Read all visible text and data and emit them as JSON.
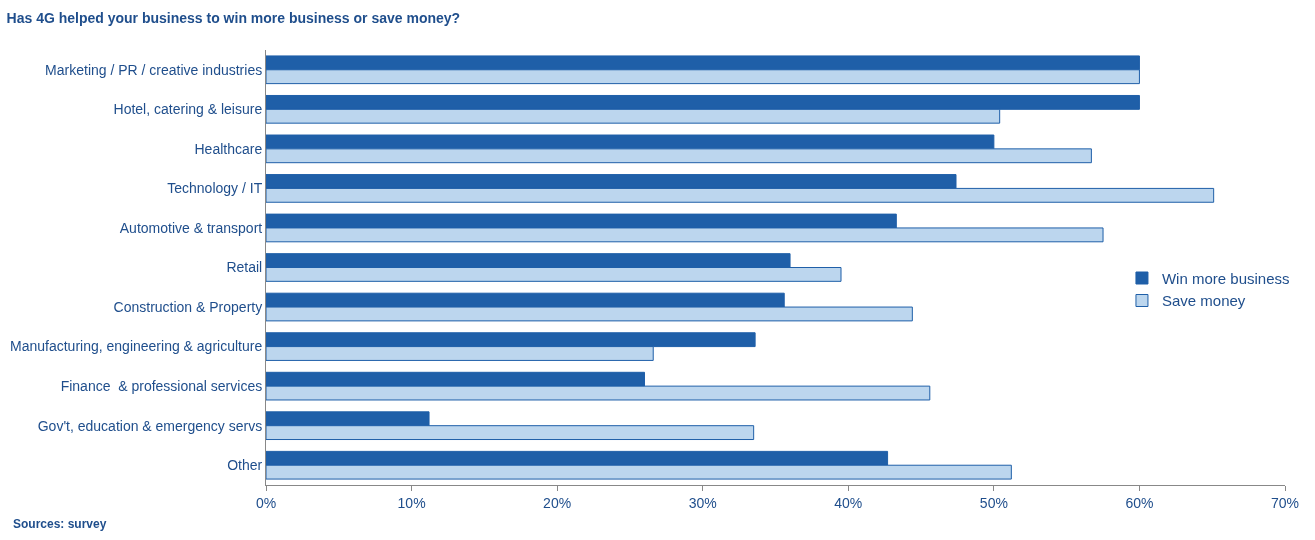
{
  "chart_data": {
    "type": "bar",
    "orientation": "horizontal",
    "title": "Has 4G helped your business to win more business or save money?",
    "categories": [
      "Marketing / PR / creative industries",
      "Hotel, catering & leisure",
      "Healthcare",
      "Technology / IT",
      "Automotive & transport",
      "Retail",
      "Construction & Property",
      "Manufacturing, engineering & agriculture",
      "Finance  & professional services",
      "Gov't, education & emergency servs",
      "Other"
    ],
    "series": [
      {
        "name": "Win more business",
        "color": "#1f5fa8",
        "values": [
          60,
          60,
          50,
          47.4,
          43.3,
          36,
          35.6,
          33.6,
          26,
          11.2,
          42.7
        ]
      },
      {
        "name": "Save money",
        "color": "#bcd6ee",
        "values": [
          60,
          50.4,
          56.7,
          65.1,
          57.5,
          39.5,
          44.4,
          26.6,
          45.6,
          33.5,
          51.2
        ]
      }
    ],
    "xlim": [
      0,
      70
    ],
    "xticks": [
      {
        "value": 0,
        "label": "0%"
      },
      {
        "value": 10,
        "label": "10%"
      },
      {
        "value": 20,
        "label": "20%"
      },
      {
        "value": 30,
        "label": "30%"
      },
      {
        "value": 40,
        "label": "40%"
      },
      {
        "value": 50,
        "label": "50%"
      },
      {
        "value": 60,
        "label": "60%"
      },
      {
        "value": 70,
        "label": "70%"
      }
    ],
    "grid": false,
    "legend": "right",
    "annotations": [
      "Sources: survey"
    ]
  }
}
